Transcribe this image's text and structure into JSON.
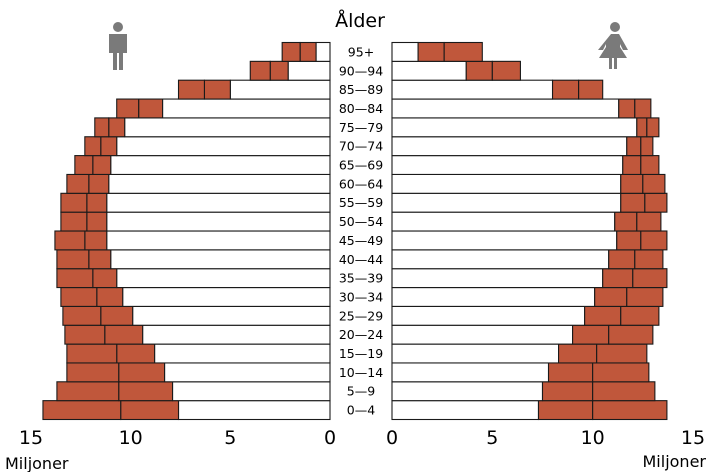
{
  "chart_data": {
    "type": "bar",
    "title": "Ålder",
    "xlabel_left": "Miljoner",
    "xlabel_right": "Miljoner",
    "xlim": [
      0,
      15
    ],
    "x_ticks": [
      "15",
      "10",
      "5",
      "0",
      "0",
      "5",
      "10",
      "15"
    ],
    "categories": [
      "0—4",
      "5—9",
      "10—14",
      "15—19",
      "20—24",
      "25—29",
      "30—34",
      "35—39",
      "40—44",
      "45—49",
      "50—54",
      "55—59",
      "60—64",
      "65—69",
      "70—74",
      "75—79",
      "80—84",
      "85—89",
      "90—94",
      "95+"
    ],
    "series": [
      {
        "name": "",
        "side": "left",
        "segments": [
          [
            7.6,
            2.9,
            3.9
          ],
          [
            7.9,
            2.7,
            3.1
          ],
          [
            8.3,
            2.3,
            2.6
          ],
          [
            8.8,
            1.9,
            2.5
          ],
          [
            9.4,
            1.9,
            2.0
          ],
          [
            9.9,
            1.6,
            1.9
          ],
          [
            10.4,
            1.3,
            1.8
          ],
          [
            10.7,
            1.2,
            1.8
          ],
          [
            11.0,
            1.1,
            1.6
          ],
          [
            11.2,
            1.1,
            1.5
          ],
          [
            11.2,
            1.0,
            1.3
          ],
          [
            11.2,
            1.0,
            1.3
          ],
          [
            11.1,
            1.0,
            1.1
          ],
          [
            11.0,
            0.9,
            0.9
          ],
          [
            10.7,
            0.8,
            0.8
          ],
          [
            10.3,
            0.8,
            0.7
          ],
          [
            8.4,
            1.2,
            1.1
          ],
          [
            5.0,
            1.3,
            1.3
          ],
          [
            2.1,
            0.9,
            1.0
          ],
          [
            0.7,
            0.8,
            0.9
          ]
        ]
      },
      {
        "name": "",
        "side": "right",
        "segments": [
          [
            7.3,
            2.7,
            3.7
          ],
          [
            7.5,
            2.5,
            3.1
          ],
          [
            7.8,
            2.2,
            2.8
          ],
          [
            8.3,
            1.9,
            2.5
          ],
          [
            9.0,
            1.8,
            2.2
          ],
          [
            9.6,
            1.8,
            1.9
          ],
          [
            10.1,
            1.6,
            1.8
          ],
          [
            10.5,
            1.5,
            1.7
          ],
          [
            10.8,
            1.3,
            1.4
          ],
          [
            11.2,
            1.2,
            1.3
          ],
          [
            11.1,
            1.1,
            1.2
          ],
          [
            11.4,
            1.2,
            1.1
          ],
          [
            11.4,
            1.1,
            1.1
          ],
          [
            11.5,
            0.9,
            0.9
          ],
          [
            11.7,
            0.7,
            0.6
          ],
          [
            12.2,
            0.5,
            0.6
          ],
          [
            11.3,
            0.8,
            0.8
          ],
          [
            8.0,
            1.3,
            1.2
          ],
          [
            3.7,
            1.3,
            1.4
          ],
          [
            1.3,
            1.3,
            1.9
          ]
        ]
      }
    ],
    "colors": {
      "bar_fill": "#ffffff",
      "bar_color": "#c0573b",
      "outline": "#1a1a1a",
      "icon": "#7a7a7a"
    },
    "icons": {
      "left": "male-icon",
      "right": "female-icon"
    },
    "grid": false,
    "legend": "none"
  }
}
